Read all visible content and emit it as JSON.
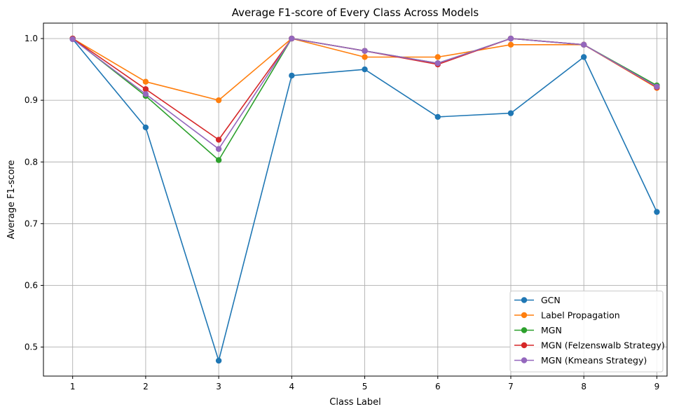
{
  "chart_data": {
    "type": "line",
    "title": "Average F1-score of Every Class Across Models",
    "xlabel": "Class Label",
    "ylabel": "Average F1-score",
    "x": [
      1,
      2,
      3,
      4,
      5,
      6,
      7,
      8,
      9
    ],
    "xticks": [
      "1",
      "2",
      "3",
      "4",
      "5",
      "6",
      "7",
      "8",
      "9"
    ],
    "yticks": [
      "0.5",
      "0.6",
      "0.7",
      "0.8",
      "0.9",
      "1.0"
    ],
    "ylim": [
      0.453,
      1.025
    ],
    "xlim": [
      0.6,
      9.14
    ],
    "grid": true,
    "legend_position": "lower-right",
    "series": [
      {
        "name": "GCN",
        "color": "#1f77b4",
        "values": [
          0.999,
          0.856,
          0.478,
          0.94,
          0.95,
          0.873,
          0.879,
          0.97,
          0.719
        ]
      },
      {
        "name": "Label Propagation",
        "color": "#ff7f0e",
        "values": [
          1.0,
          0.93,
          0.9,
          1.0,
          0.97,
          0.97,
          0.99,
          0.99,
          0.92
        ]
      },
      {
        "name": "MGN",
        "color": "#2ca02c",
        "values": [
          1.0,
          0.907,
          0.803,
          1.0,
          0.98,
          0.96,
          1.0,
          0.99,
          0.924
        ]
      },
      {
        "name": "MGN (Felzenswalb Strategy)",
        "color": "#d62728",
        "values": [
          1.0,
          0.918,
          0.836,
          1.0,
          0.98,
          0.958,
          1.0,
          0.99,
          0.921
        ]
      },
      {
        "name": "MGN (Kmeans Strategy)",
        "color": "#9467bd",
        "values": [
          0.999,
          0.91,
          0.821,
          1.0,
          0.98,
          0.96,
          1.0,
          0.99,
          0.922
        ]
      }
    ]
  }
}
